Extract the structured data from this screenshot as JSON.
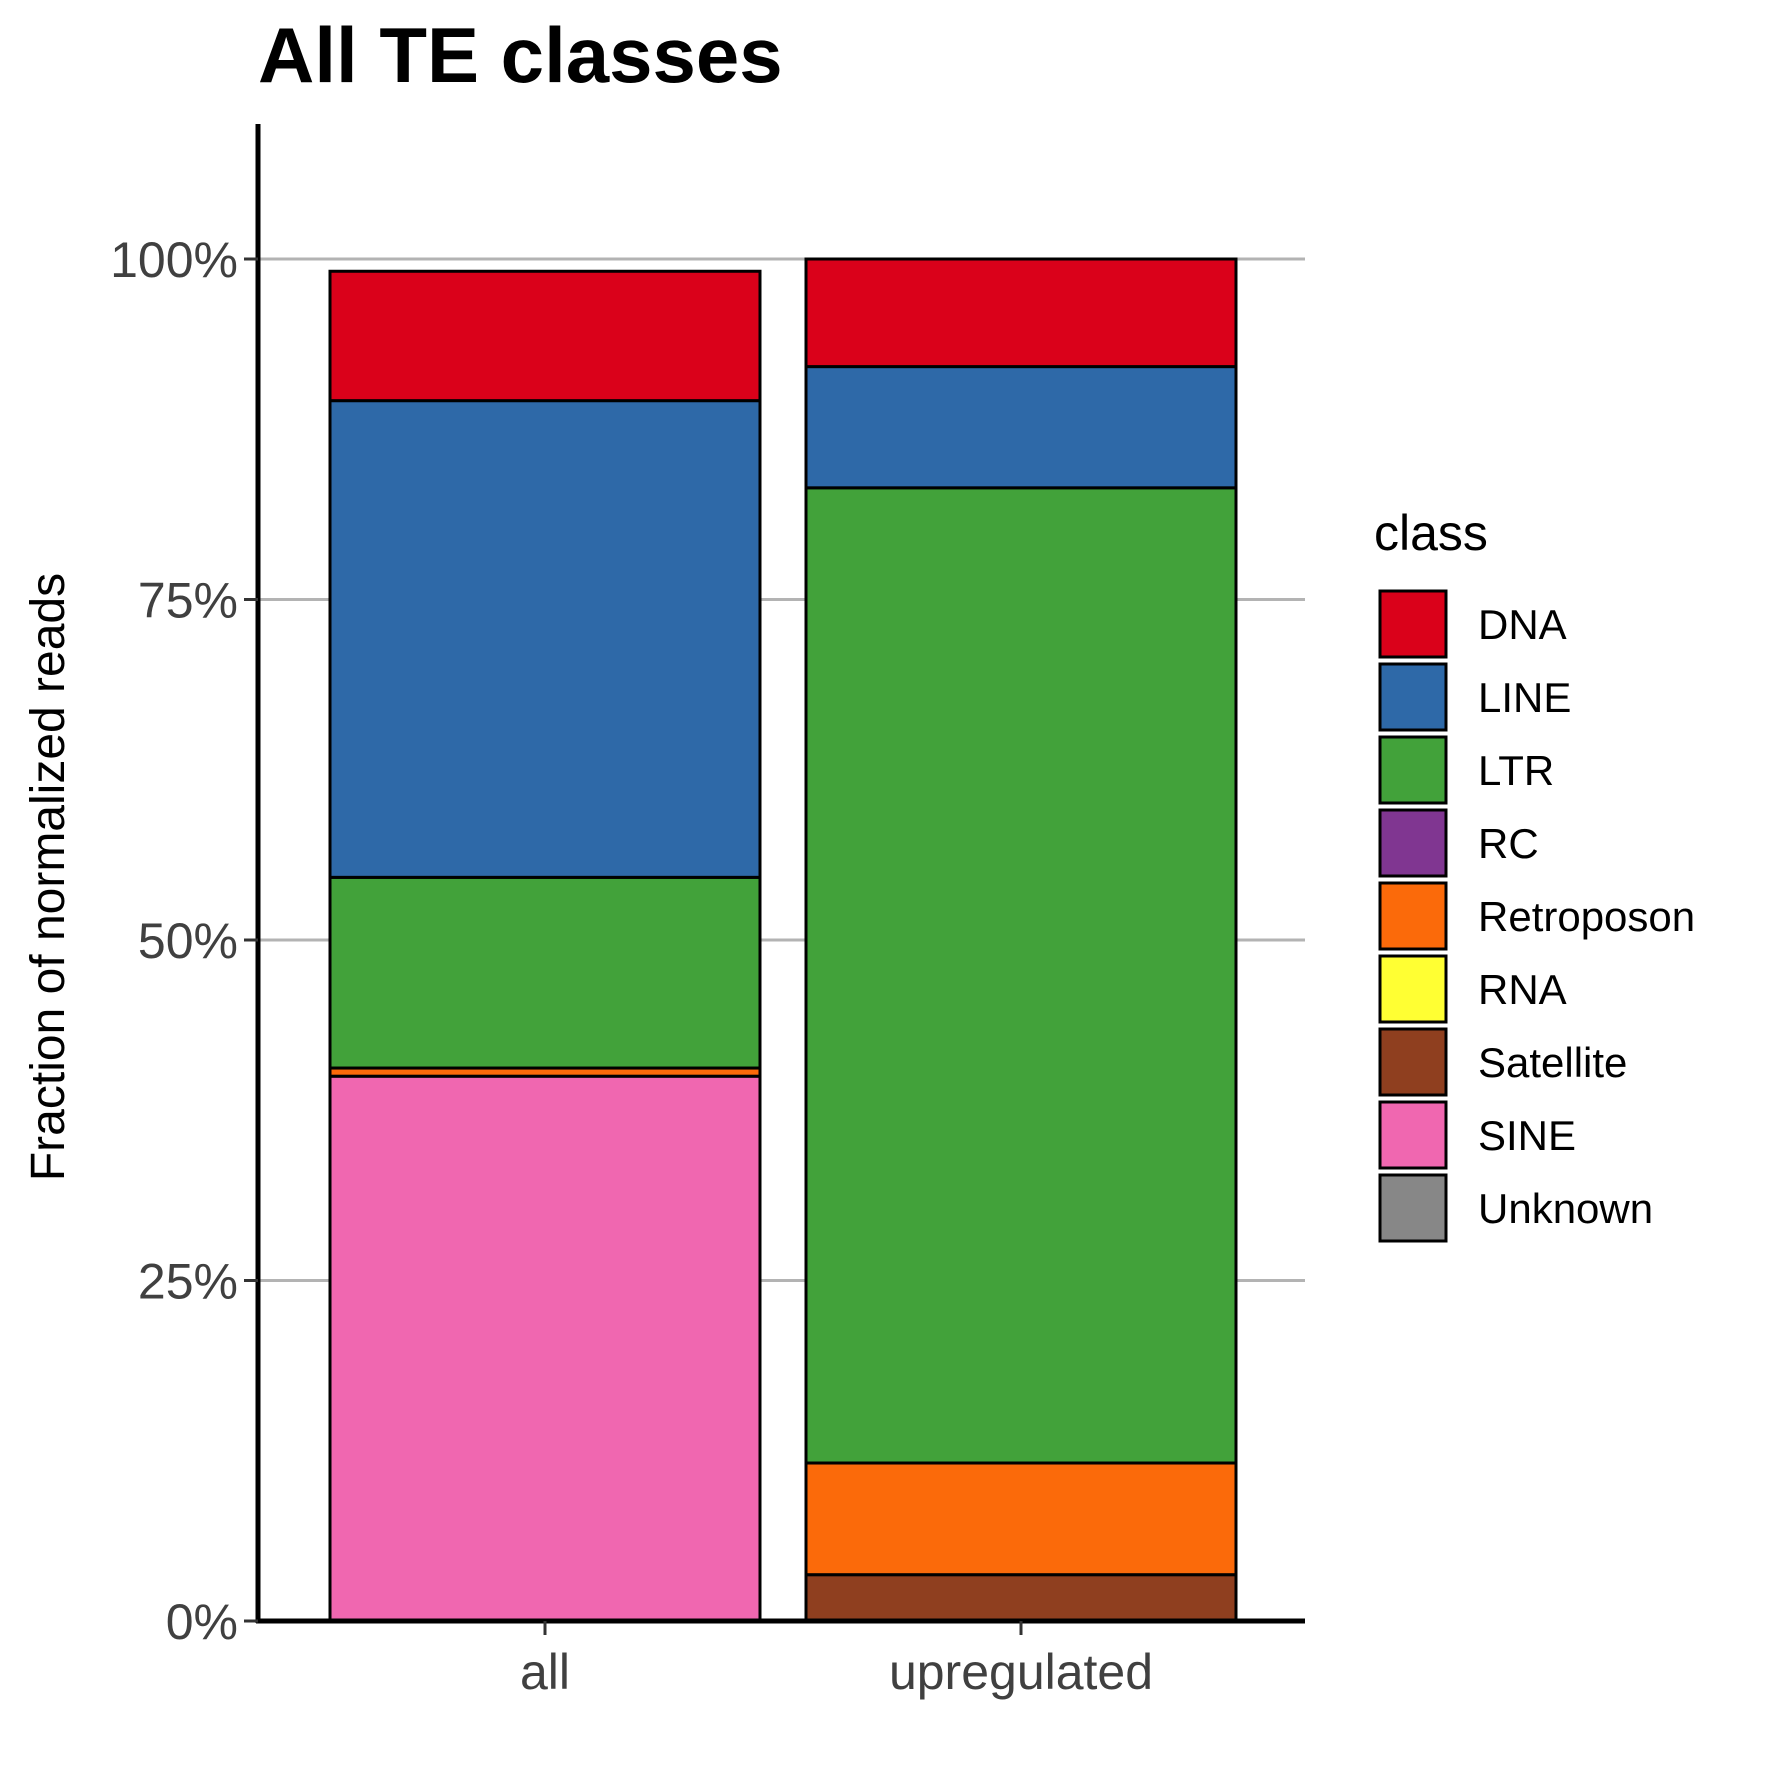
{
  "chart_data": {
    "type": "bar",
    "stacked": true,
    "title": "All TE classes",
    "xlabel": "",
    "ylabel": "Fraction of normalized reads",
    "ylim": [
      0,
      1.1
    ],
    "yticks": [
      0,
      0.25,
      0.5,
      0.75,
      1.0
    ],
    "ytick_labels": [
      "0%",
      "25%",
      "50%",
      "75%",
      "100%"
    ],
    "grid": "horizontal major",
    "legend_position": "right",
    "legend_title": "class",
    "categories": [
      "all",
      "upregulated"
    ],
    "series": [
      {
        "name": "SINE",
        "color": "#F067B0",
        "values": [
          0.4,
          0.0
        ]
      },
      {
        "name": "Satellite",
        "color": "#8F3F1F",
        "values": [
          0.0,
          0.034
        ]
      },
      {
        "name": "Retroposon",
        "color": "#FB6A0A",
        "values": [
          0.006,
          0.082
        ]
      },
      {
        "name": "RNA",
        "color": "#FFFF33",
        "values": [
          0.0,
          0.0
        ]
      },
      {
        "name": "RC",
        "color": "#803691",
        "values": [
          0.0,
          0.0
        ]
      },
      {
        "name": "LTR",
        "color": "#42A23A",
        "values": [
          0.14,
          0.716
        ]
      },
      {
        "name": "LINE",
        "color": "#2E69A8",
        "values": [
          0.35,
          0.089
        ]
      },
      {
        "name": "DNA",
        "color": "#DA011A",
        "values": [
          0.095,
          0.079
        ]
      },
      {
        "name": "Unknown",
        "color": "#878787",
        "values": [
          0.0,
          0.0
        ]
      }
    ],
    "legend_order": [
      "DNA",
      "LINE",
      "LTR",
      "RC",
      "Retroposon",
      "RNA",
      "Satellite",
      "SINE",
      "Unknown"
    ]
  }
}
